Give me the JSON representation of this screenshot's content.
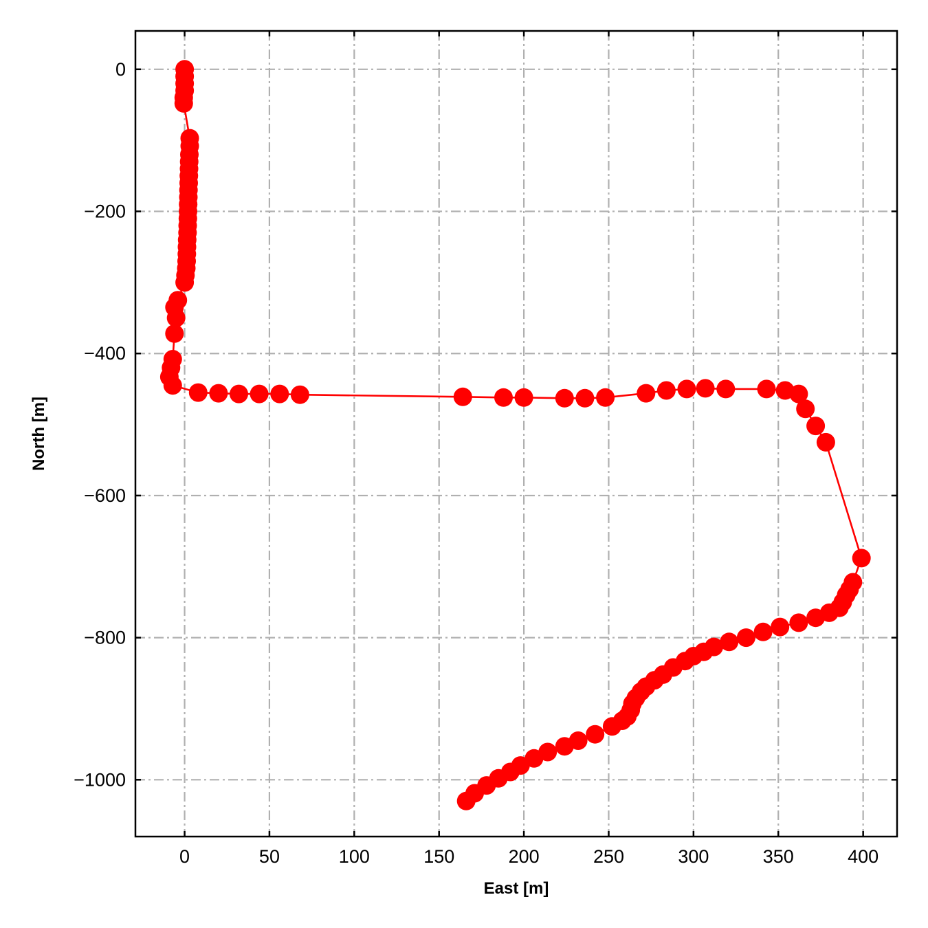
{
  "chart_data": {
    "type": "scatter",
    "title": "",
    "xlabel": "East [m]",
    "ylabel": "North [m]",
    "xlim": [
      -29,
      420
    ],
    "ylim": [
      -1080,
      54
    ],
    "xticks": [
      0,
      50,
      100,
      150,
      200,
      250,
      300,
      350,
      400
    ],
    "yticks": [
      0,
      -200,
      -400,
      -600,
      -800,
      -1000
    ],
    "xtick_labels": [
      "0",
      "50",
      "100",
      "150",
      "200",
      "250",
      "300",
      "350",
      "400"
    ],
    "ytick_labels": [
      "0",
      "−200",
      "−400",
      "−600",
      "−800",
      "−1000"
    ],
    "grid": true,
    "line_color": "#ff0000",
    "marker_color": "#ff0000",
    "series": [
      {
        "points": [
          [
            0,
            0
          ],
          [
            0,
            -10
          ],
          [
            0,
            -20
          ],
          [
            0,
            -30
          ],
          [
            -0.5,
            -40
          ],
          [
            -0.5,
            -48
          ],
          [
            3,
            -97
          ],
          [
            3,
            -108
          ],
          [
            2.8,
            -120
          ],
          [
            2.7,
            -130
          ],
          [
            2.6,
            -140
          ],
          [
            2.5,
            -150
          ],
          [
            2.4,
            -160
          ],
          [
            2.3,
            -170
          ],
          [
            2.2,
            -180
          ],
          [
            2.1,
            -190
          ],
          [
            2,
            -200
          ],
          [
            1.9,
            -210
          ],
          [
            1.8,
            -220
          ],
          [
            1.7,
            -230
          ],
          [
            1.5,
            -240
          ],
          [
            1.4,
            -250
          ],
          [
            1.3,
            -260
          ],
          [
            1.2,
            -270
          ],
          [
            1,
            -280
          ],
          [
            0.5,
            -290
          ],
          [
            0,
            -300
          ],
          [
            -4,
            -325
          ],
          [
            -6,
            -335
          ],
          [
            -5,
            -350
          ],
          [
            -6,
            -372
          ],
          [
            -7,
            -408
          ],
          [
            -8,
            -420
          ],
          [
            -9,
            -433
          ],
          [
            -7,
            -445
          ],
          [
            8,
            -455
          ],
          [
            20,
            -456
          ],
          [
            32,
            -457
          ],
          [
            44,
            -457
          ],
          [
            56,
            -457
          ],
          [
            68,
            -458
          ],
          [
            164,
            -461
          ],
          [
            188,
            -462
          ],
          [
            200,
            -462
          ],
          [
            224,
            -463
          ],
          [
            236,
            -463
          ],
          [
            248,
            -462
          ],
          [
            272,
            -456
          ],
          [
            284,
            -452
          ],
          [
            296,
            -450
          ],
          [
            307,
            -449
          ],
          [
            319,
            -450
          ],
          [
            343,
            -450
          ],
          [
            354,
            -452
          ],
          [
            362,
            -457
          ],
          [
            366,
            -478
          ],
          [
            372,
            -502
          ],
          [
            378,
            -525
          ],
          [
            399,
            -688
          ],
          [
            394,
            -722
          ],
          [
            392,
            -732
          ],
          [
            390,
            -740
          ],
          [
            388,
            -750
          ],
          [
            386,
            -758
          ],
          [
            380,
            -765
          ],
          [
            372,
            -772
          ],
          [
            362,
            -779
          ],
          [
            351,
            -785
          ],
          [
            341,
            -792
          ],
          [
            331,
            -800
          ],
          [
            321,
            -806
          ],
          [
            312,
            -813
          ],
          [
            306,
            -820
          ],
          [
            300,
            -826
          ],
          [
            295,
            -833
          ],
          [
            288,
            -842
          ],
          [
            282,
            -852
          ],
          [
            277,
            -860
          ],
          [
            272,
            -869
          ],
          [
            269,
            -876
          ],
          [
            266,
            -885
          ],
          [
            264,
            -893
          ],
          [
            263,
            -902
          ],
          [
            261,
            -911
          ],
          [
            258,
            -917
          ],
          [
            252,
            -925
          ],
          [
            242,
            -936
          ],
          [
            232,
            -945
          ],
          [
            224,
            -953
          ],
          [
            214,
            -961
          ],
          [
            206,
            -970
          ],
          [
            198,
            -980
          ],
          [
            192,
            -989
          ],
          [
            185,
            -998
          ],
          [
            178,
            -1008
          ],
          [
            171,
            -1019
          ],
          [
            166,
            -1030
          ]
        ]
      }
    ]
  }
}
